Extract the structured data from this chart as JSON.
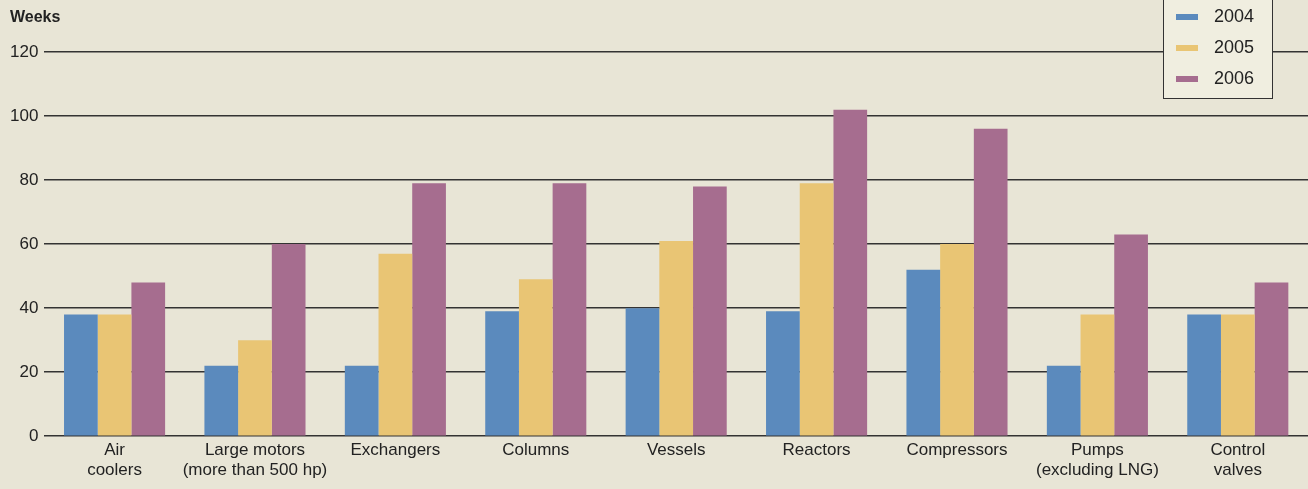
{
  "chart_data": {
    "type": "bar",
    "ylabel": "Weeks",
    "categories": [
      "Air\ncoolers",
      "Large motors\n(more than 500 hp)",
      "Exchangers",
      "Columns",
      "Vessels",
      "Reactors",
      "Compressors",
      "Pumps\n(excluding LNG)",
      "Control\nvalves"
    ],
    "series": [
      {
        "name": "2004",
        "color": "#5b8abd",
        "values": [
          38,
          22,
          22,
          39,
          40,
          39,
          52,
          22,
          38
        ]
      },
      {
        "name": "2005",
        "color": "#e9c574",
        "values": [
          38,
          30,
          57,
          49,
          61,
          79,
          60,
          38,
          38
        ]
      },
      {
        "name": "2006",
        "color": "#a66d8f",
        "values": [
          48,
          60,
          79,
          79,
          78,
          102,
          96,
          63,
          48
        ]
      }
    ],
    "ylim": [
      0,
      120
    ],
    "yticks": [
      0,
      20,
      40,
      60,
      80,
      100,
      120
    ],
    "grid": "y",
    "legend": "top right"
  }
}
